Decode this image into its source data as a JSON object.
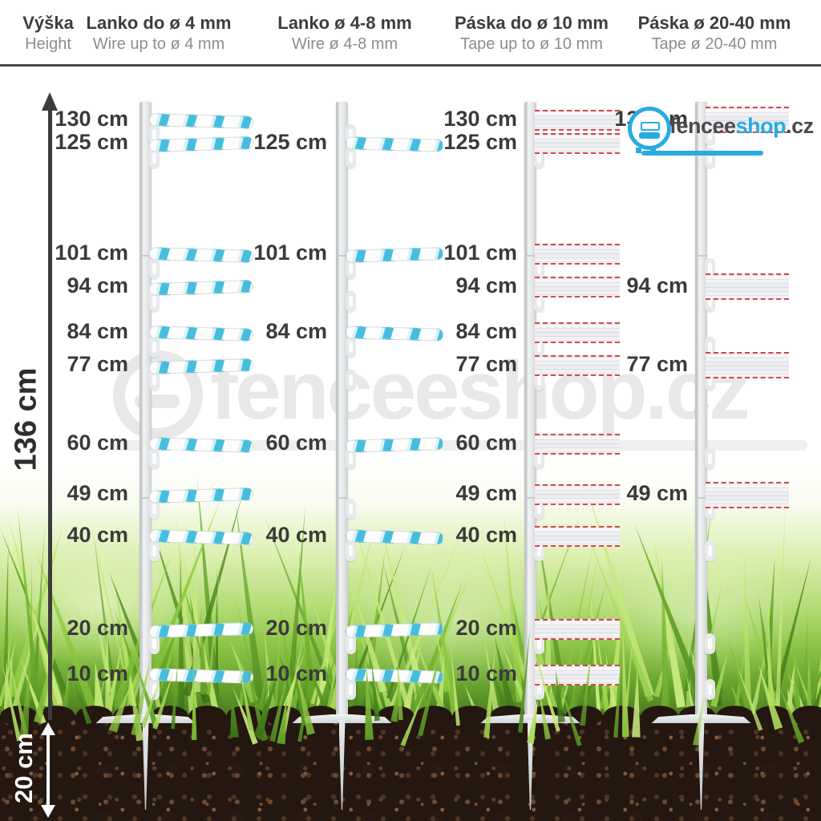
{
  "header": {
    "height_col": {
      "title": "Výška",
      "subtitle": "Height"
    },
    "columns": [
      {
        "id": "wire-up-to-4mm",
        "title": "Lanko do ø 4 mm",
        "subtitle": "Wire up to ø 4 mm",
        "conductor": "rope",
        "heights_cm": [
          130,
          125,
          101,
          94,
          84,
          77,
          60,
          49,
          40,
          20,
          10
        ]
      },
      {
        "id": "wire-4-8mm",
        "title": "Lanko ø 4-8 mm",
        "subtitle": "Wire ø 4-8 mm",
        "conductor": "rope",
        "heights_cm": [
          125,
          101,
          84,
          60,
          40,
          20,
          10
        ]
      },
      {
        "id": "tape-up-to-10mm",
        "title": "Páska do ø 10 mm",
        "subtitle": "Tape up to ø 10 mm",
        "conductor": "tape_narrow",
        "heights_cm": [
          130,
          125,
          101,
          94,
          84,
          77,
          60,
          49,
          40,
          20,
          10
        ]
      },
      {
        "id": "tape-20-40mm",
        "title": "Páska ø 20-40 mm",
        "subtitle": "Tape ø 20-40 mm",
        "conductor": "tape_wide",
        "heights_cm": [
          130,
          94,
          77,
          49
        ]
      }
    ]
  },
  "measure": {
    "above_ground_label": "136 cm",
    "below_ground_label": "20 cm",
    "unit_suffix": " cm",
    "standard_heights_cm": [
      130,
      125,
      101,
      94,
      84,
      77,
      60,
      49,
      40,
      20,
      10
    ]
  },
  "watermark": {
    "text": "fenceeshop.cz"
  },
  "logo": {
    "text_primary": "fencee",
    "text_accent": "shop",
    "text_suffix": ".cz"
  },
  "colors": {
    "accent_blue": "#29abe2",
    "rope_blue": "#45bede",
    "tape_red": "#d64545",
    "label_dark": "#3a3a3a",
    "subtitle_gray": "#8d8d8d",
    "grass_greens": [
      "#c7e97b",
      "#aadb55",
      "#8fcb3f",
      "#79b832",
      "#5f9e27",
      "#4a851e",
      "#3a7016"
    ],
    "soil_dark": "#241710",
    "soil_light": "#8a5f3e"
  }
}
